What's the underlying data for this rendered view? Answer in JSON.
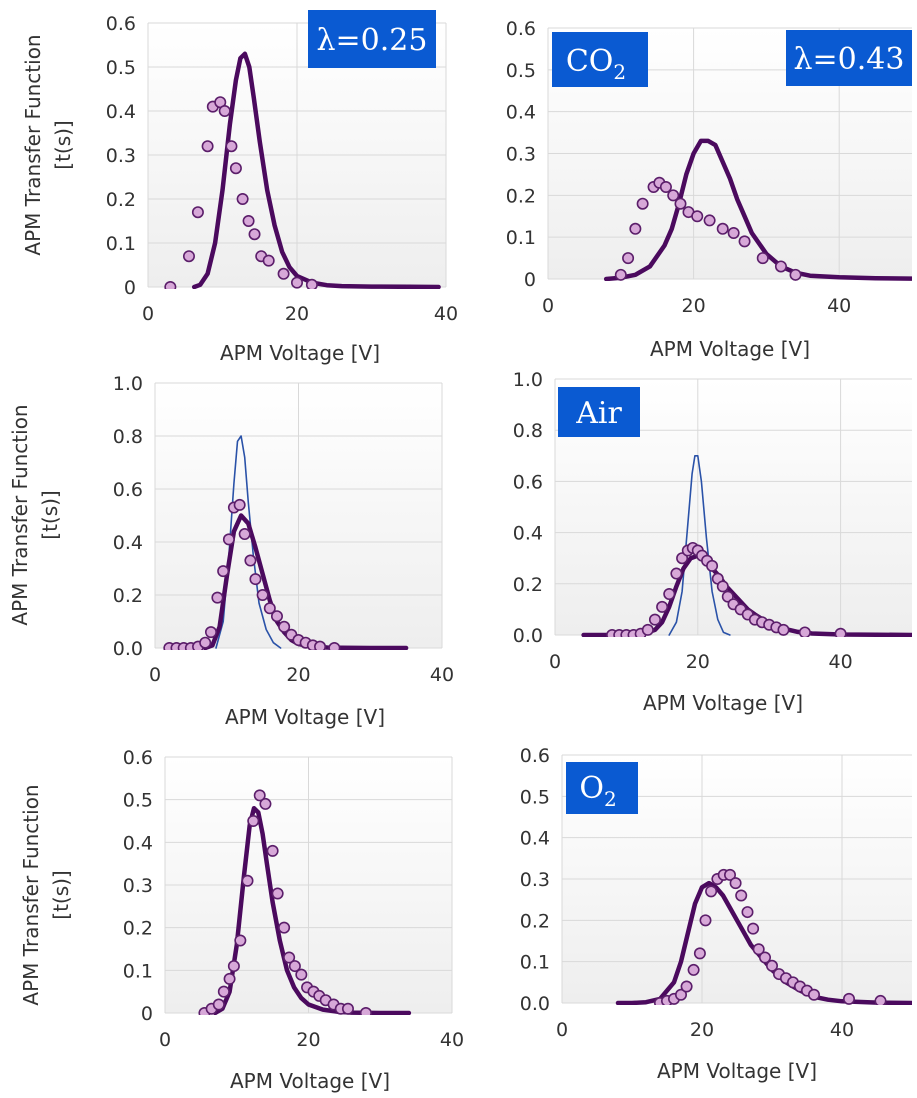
{
  "y_axis_label_lines": [
    "APM Transfer Function",
    "[t(s)]"
  ],
  "colors": {
    "model": "#4b0a5e",
    "theory": "#2a52a8",
    "points_fill": "#d7a8d8",
    "points_stroke": "#5b1e6a",
    "label_box": "#0a5ad2",
    "grid": "#d9d9d9"
  },
  "chart_data": [
    {
      "type": "line",
      "xlabel": "APM Voltage [V]",
      "xlim": [
        0,
        40
      ],
      "ylim": [
        0,
        0.6
      ],
      "xticks": [
        "0",
        "20",
        "40"
      ],
      "yticks": [
        "0",
        "0.1",
        "0.2",
        "0.3",
        "0.4",
        "0.5",
        "0.6"
      ],
      "labels": [
        "λ=0.25"
      ],
      "series": [
        {
          "kind": "model",
          "x": [
            6.2,
            7,
            8,
            9,
            10,
            11,
            11.8,
            12.4,
            13,
            13.6,
            14.2,
            15,
            16,
            17,
            18,
            19,
            20,
            22,
            24,
            26,
            30,
            35,
            39
          ],
          "y": [
            0,
            0.005,
            0.03,
            0.1,
            0.22,
            0.37,
            0.47,
            0.52,
            0.53,
            0.5,
            0.43,
            0.33,
            0.22,
            0.14,
            0.08,
            0.045,
            0.025,
            0.01,
            0.004,
            0.002,
            0.001,
            0.0005,
            0
          ]
        },
        {
          "kind": "points",
          "x": [
            3,
            5.5,
            6.7,
            8,
            8.7,
            9.7,
            10.3,
            11.2,
            11.8,
            12.7,
            13.5,
            14.3,
            15.2,
            16.2,
            18.2,
            20,
            22
          ],
          "y": [
            0,
            0.07,
            0.17,
            0.32,
            0.41,
            0.42,
            0.4,
            0.32,
            0.27,
            0.2,
            0.15,
            0.12,
            0.07,
            0.06,
            0.03,
            0.01,
            0.005
          ]
        }
      ]
    },
    {
      "type": "line",
      "xlabel": "APM Voltage [V]",
      "xlim": [
        0,
        50
      ],
      "ylim": [
        0,
        0.6
      ],
      "xticks": [
        "0",
        "20",
        "40"
      ],
      "yticks": [
        "0",
        "0.1",
        "0.2",
        "0.3",
        "0.4",
        "0.5",
        "0.6"
      ],
      "labels": [
        "CO",
        "2",
        "λ=0.43"
      ],
      "series": [
        {
          "kind": "model",
          "x": [
            8,
            10,
            12,
            14,
            16,
            17,
            18,
            19,
            20,
            21,
            22,
            23,
            24,
            25,
            26,
            27,
            28,
            30,
            32,
            34,
            36,
            40,
            45,
            50
          ],
          "y": [
            0,
            0.003,
            0.01,
            0.03,
            0.08,
            0.12,
            0.18,
            0.25,
            0.3,
            0.33,
            0.33,
            0.32,
            0.28,
            0.24,
            0.19,
            0.15,
            0.11,
            0.06,
            0.03,
            0.015,
            0.008,
            0.004,
            0.002,
            0.001
          ]
        },
        {
          "kind": "points",
          "x": [
            10,
            11,
            12,
            13,
            14.5,
            15.3,
            16.2,
            17.2,
            18.2,
            19.3,
            20.5,
            22.2,
            24,
            25.5,
            27,
            29.5,
            32,
            34
          ],
          "y": [
            0.01,
            0.05,
            0.12,
            0.18,
            0.22,
            0.23,
            0.22,
            0.2,
            0.18,
            0.16,
            0.15,
            0.14,
            0.12,
            0.11,
            0.09,
            0.05,
            0.03,
            0.01
          ]
        }
      ]
    },
    {
      "type": "line",
      "xlabel": "APM Voltage [V]",
      "xlim": [
        0,
        40
      ],
      "ylim": [
        0,
        1.0
      ],
      "xticks": [
        "0",
        "20",
        "40"
      ],
      "yticks": [
        "0.0",
        "0.2",
        "0.4",
        "0.6",
        "0.8",
        "1.0"
      ],
      "labels": [],
      "series": [
        {
          "kind": "theory",
          "x": [
            8.5,
            9.5,
            10.3,
            11,
            11.5,
            12,
            12.5,
            13,
            13.7,
            14.5,
            15.5,
            16.5,
            17.5
          ],
          "y": [
            0,
            0.1,
            0.35,
            0.62,
            0.78,
            0.8,
            0.72,
            0.55,
            0.35,
            0.17,
            0.07,
            0.02,
            0
          ]
        },
        {
          "kind": "model",
          "x": [
            7,
            8,
            9,
            10,
            11,
            12,
            13,
            14,
            15,
            16,
            17,
            18,
            19,
            20,
            22,
            24,
            26,
            30,
            35
          ],
          "y": [
            0,
            0.01,
            0.08,
            0.27,
            0.44,
            0.5,
            0.47,
            0.38,
            0.28,
            0.18,
            0.1,
            0.06,
            0.03,
            0.015,
            0.005,
            0.002,
            0.001,
            0,
            0
          ]
        },
        {
          "kind": "points",
          "x": [
            2,
            3,
            4,
            5,
            6,
            7,
            7.8,
            8.7,
            9.5,
            10.3,
            11,
            11.8,
            12.5,
            13.3,
            14,
            15,
            16,
            17,
            18,
            19,
            20,
            21,
            22,
            23,
            25
          ],
          "y": [
            0,
            0,
            0,
            0,
            0.005,
            0.02,
            0.06,
            0.19,
            0.29,
            0.41,
            0.53,
            0.54,
            0.43,
            0.33,
            0.26,
            0.2,
            0.15,
            0.12,
            0.08,
            0.05,
            0.03,
            0.02,
            0.01,
            0.005,
            0
          ]
        }
      ]
    },
    {
      "type": "line",
      "xlabel": "APM Voltage [V]",
      "xlim": [
        0,
        50
      ],
      "ylim": [
        0,
        1.0
      ],
      "xticks": [
        "0",
        "20",
        "40"
      ],
      "yticks": [
        "0.0",
        "0.2",
        "0.4",
        "0.6",
        "0.8",
        "1.0"
      ],
      "labels": [
        "Air"
      ],
      "series": [
        {
          "kind": "theory",
          "x": [
            16,
            17,
            17.8,
            18.5,
            19.2,
            19.6,
            20,
            20.5,
            21.2,
            22,
            22.8,
            23.6,
            24.5
          ],
          "y": [
            0,
            0.05,
            0.17,
            0.4,
            0.63,
            0.7,
            0.7,
            0.6,
            0.38,
            0.17,
            0.06,
            0.01,
            0
          ]
        },
        {
          "kind": "model",
          "x": [
            4,
            8,
            10,
            12,
            14,
            15,
            16,
            17,
            18,
            19,
            20,
            21,
            22,
            23,
            24,
            25,
            26,
            27,
            28,
            30,
            32,
            34,
            36,
            40,
            45,
            50
          ],
          "y": [
            0,
            0,
            0,
            0.002,
            0.02,
            0.05,
            0.11,
            0.19,
            0.26,
            0.3,
            0.31,
            0.29,
            0.26,
            0.23,
            0.19,
            0.16,
            0.13,
            0.1,
            0.08,
            0.045,
            0.025,
            0.012,
            0.006,
            0.002,
            0.001,
            0
          ]
        },
        {
          "kind": "points",
          "x": [
            8,
            9,
            10,
            11,
            12,
            13,
            14,
            15,
            16,
            17,
            17.8,
            18.6,
            19.3,
            20,
            20.6,
            21.3,
            22,
            22.8,
            23.5,
            24.2,
            25,
            26,
            27,
            28,
            29,
            30,
            31,
            32,
            35,
            40
          ],
          "y": [
            0,
            0,
            0,
            0,
            0.005,
            0.02,
            0.06,
            0.11,
            0.16,
            0.24,
            0.3,
            0.33,
            0.34,
            0.33,
            0.31,
            0.29,
            0.27,
            0.22,
            0.19,
            0.15,
            0.12,
            0.1,
            0.08,
            0.06,
            0.05,
            0.04,
            0.03,
            0.02,
            0.01,
            0.005
          ]
        }
      ]
    },
    {
      "type": "line",
      "xlabel": "APM Voltage [V]",
      "xlim": [
        0,
        40
      ],
      "ylim": [
        0,
        0.6
      ],
      "xticks": [
        "0",
        "20",
        "40"
      ],
      "yticks": [
        "0",
        "0.1",
        "0.2",
        "0.3",
        "0.4",
        "0.5",
        "0.6"
      ],
      "labels": [],
      "series": [
        {
          "kind": "model",
          "x": [
            7,
            8,
            9,
            10,
            11,
            11.8,
            12.4,
            13,
            13.6,
            14.2,
            15,
            16,
            17,
            18,
            19,
            20,
            22,
            24,
            26,
            30,
            34
          ],
          "y": [
            0,
            0.01,
            0.05,
            0.16,
            0.32,
            0.44,
            0.48,
            0.47,
            0.42,
            0.35,
            0.26,
            0.17,
            0.1,
            0.06,
            0.035,
            0.02,
            0.008,
            0.003,
            0.001,
            0,
            0
          ]
        },
        {
          "kind": "points",
          "x": [
            5.5,
            6.5,
            7.5,
            8.2,
            9,
            9.6,
            10.5,
            11.5,
            12.3,
            13.2,
            14,
            15,
            15.7,
            16.6,
            17.3,
            18.1,
            19,
            19.8,
            20.7,
            21.5,
            22.4,
            23.5,
            24.5,
            25.5,
            28
          ],
          "y": [
            0,
            0.01,
            0.02,
            0.05,
            0.08,
            0.11,
            0.17,
            0.31,
            0.45,
            0.51,
            0.49,
            0.38,
            0.28,
            0.2,
            0.13,
            0.11,
            0.09,
            0.06,
            0.05,
            0.04,
            0.03,
            0.02,
            0.01,
            0.01,
            0
          ]
        }
      ]
    },
    {
      "type": "line",
      "xlabel": "APM Voltage [V]",
      "xlim": [
        0,
        50
      ],
      "ylim": [
        0,
        0.6
      ],
      "xticks": [
        "0",
        "20",
        "40"
      ],
      "yticks": [
        "0.0",
        "0.1",
        "0.2",
        "0.3",
        "0.4",
        "0.5",
        "0.6"
      ],
      "labels": [
        "O",
        "2"
      ],
      "series": [
        {
          "kind": "model",
          "x": [
            8,
            10,
            12,
            14,
            16,
            17,
            18,
            19,
            20,
            21,
            22,
            23,
            24,
            25,
            26,
            27,
            28,
            29,
            30,
            32,
            34,
            36,
            38,
            40,
            45,
            50
          ],
          "y": [
            0,
            0,
            0.002,
            0.01,
            0.05,
            0.1,
            0.17,
            0.24,
            0.28,
            0.29,
            0.28,
            0.26,
            0.23,
            0.2,
            0.17,
            0.14,
            0.12,
            0.1,
            0.08,
            0.05,
            0.03,
            0.015,
            0.008,
            0.004,
            0.001,
            0
          ]
        },
        {
          "kind": "points",
          "x": [
            14,
            15,
            16,
            17,
            17.8,
            18.8,
            19.7,
            20.5,
            21.3,
            22.2,
            23.1,
            24,
            24.8,
            25.6,
            26.5,
            27.3,
            28.1,
            29,
            30,
            31,
            32,
            33,
            34,
            35,
            36,
            41,
            45.5
          ],
          "y": [
            0,
            0.005,
            0.01,
            0.02,
            0.04,
            0.08,
            0.12,
            0.2,
            0.27,
            0.3,
            0.31,
            0.31,
            0.29,
            0.26,
            0.22,
            0.18,
            0.13,
            0.11,
            0.09,
            0.07,
            0.06,
            0.05,
            0.04,
            0.03,
            0.02,
            0.01,
            0.005
          ]
        }
      ]
    }
  ]
}
